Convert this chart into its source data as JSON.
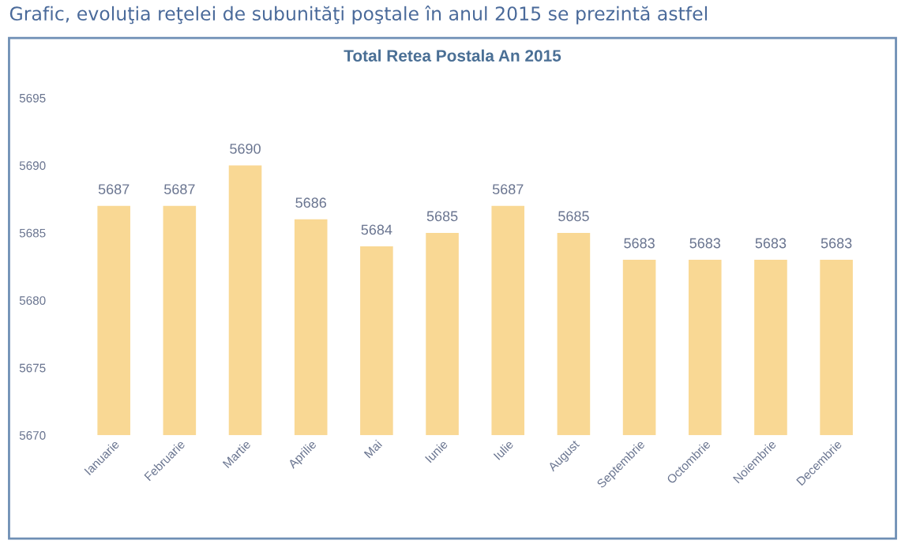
{
  "chart_data": {
    "type": "bar",
    "title": "Total Retea Postala An 2015",
    "annotations": [
      "Grafic, evoluţia reţelei de subunităţi poştale în anul 2015 se prezintă astfel"
    ],
    "categories": [
      "Ianuarie",
      "Februarie",
      "Martie",
      "Aprilie",
      "Mai",
      "Iunie",
      "Iulie",
      "August",
      "Septembrie",
      "Octombrie",
      "Noiembrie",
      "Decembrie"
    ],
    "values": [
      5687,
      5687,
      5690,
      5686,
      5684,
      5685,
      5687,
      5685,
      5683,
      5683,
      5683,
      5683
    ],
    "color": "#f9d894",
    "ylim": [
      5670,
      5695
    ],
    "yticks": [
      5670,
      5675,
      5680,
      5685,
      5690,
      5695
    ],
    "grid": false,
    "data_labels": true
  }
}
